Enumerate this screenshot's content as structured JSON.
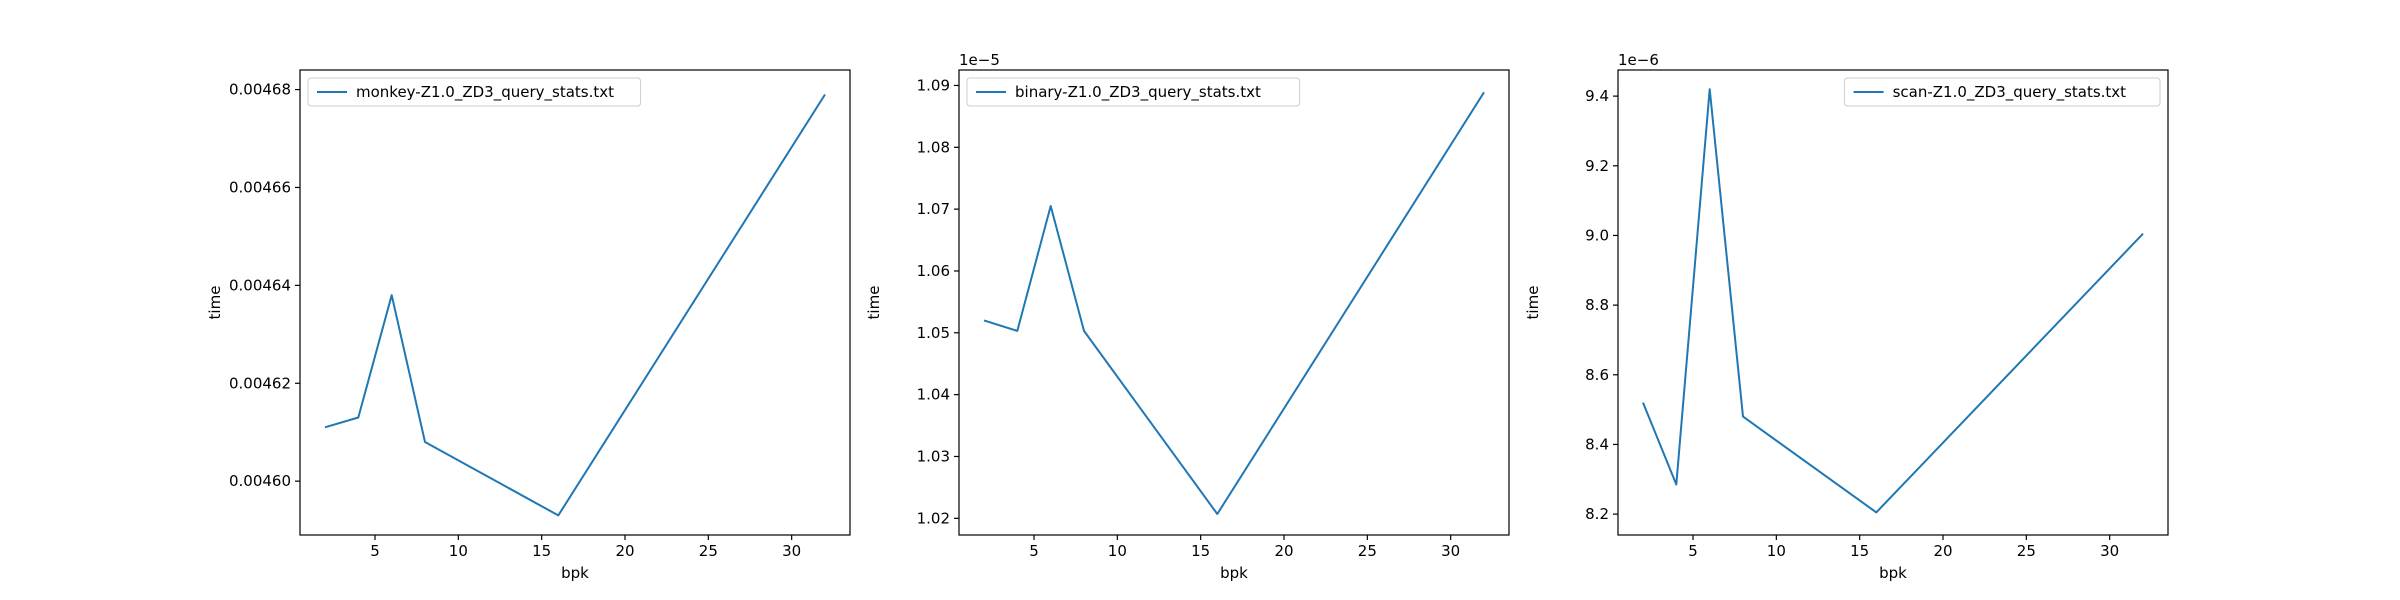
{
  "chart_data": [
    {
      "type": "line",
      "xlabel": "bpk",
      "ylabel": "time",
      "offset_label": "",
      "xlim": [
        0.5,
        33.5
      ],
      "ylim": [
        0.004589,
        0.004684
      ],
      "xticks": [
        5,
        10,
        15,
        20,
        25,
        30
      ],
      "xtick_labels": [
        "5",
        "10",
        "15",
        "20",
        "25",
        "30"
      ],
      "yticks": [
        0.0046,
        0.00462,
        0.00464,
        0.00466,
        0.00468
      ],
      "ytick_labels": [
        "0.00460",
        "0.00462",
        "0.00464",
        "0.00466",
        "0.00468"
      ],
      "legend_loc": "upper left",
      "grid": false,
      "series": [
        {
          "name": "monkey-Z1.0_ZD3_query_stats.txt",
          "color": "#1f77b4",
          "x": [
            2,
            4,
            6,
            8,
            16,
            32
          ],
          "y": [
            0.004611,
            0.004613,
            0.004638,
            0.004608,
            0.004593,
            0.004679
          ]
        }
      ]
    },
    {
      "type": "line",
      "xlabel": "bpk",
      "ylabel": "time",
      "offset_label": "1e−5",
      "xlim": [
        0.5,
        33.5
      ],
      "ylim": [
        1.0173,
        1.0925
      ],
      "xticks": [
        5,
        10,
        15,
        20,
        25,
        30
      ],
      "xtick_labels": [
        "5",
        "10",
        "15",
        "20",
        "25",
        "30"
      ],
      "yticks": [
        1.02,
        1.03,
        1.04,
        1.05,
        1.06,
        1.07,
        1.08,
        1.09
      ],
      "ytick_labels": [
        "1.02",
        "1.03",
        "1.04",
        "1.05",
        "1.06",
        "1.07",
        "1.08",
        "1.09"
      ],
      "legend_loc": "upper left",
      "grid": false,
      "series": [
        {
          "name": "binary-Z1.0_ZD3_query_stats.txt",
          "color": "#1f77b4",
          "x": [
            2,
            4,
            6,
            8,
            16,
            32
          ],
          "y": [
            1.052,
            1.0503,
            1.0705,
            1.0503,
            1.0207,
            1.0889
          ]
        }
      ]
    },
    {
      "type": "line",
      "xlabel": "bpk",
      "ylabel": "time",
      "offset_label": "1e−6",
      "xlim": [
        0.5,
        33.5
      ],
      "ylim": [
        8.14,
        9.475
      ],
      "xticks": [
        5,
        10,
        15,
        20,
        25,
        30
      ],
      "xtick_labels": [
        "5",
        "10",
        "15",
        "20",
        "25",
        "30"
      ],
      "yticks": [
        8.2,
        8.4,
        8.6,
        8.8,
        9.0,
        9.2,
        9.4
      ],
      "ytick_labels": [
        "8.2",
        "8.4",
        "8.6",
        "8.8",
        "9.0",
        "9.2",
        "9.4"
      ],
      "legend_loc": "upper right",
      "grid": false,
      "series": [
        {
          "name": "scan-Z1.0_ZD3_query_stats.txt",
          "color": "#1f77b4",
          "x": [
            2,
            4,
            6,
            8,
            16,
            32
          ],
          "y": [
            8.52,
            8.285,
            9.42,
            8.48,
            8.205,
            9.005
          ]
        }
      ]
    }
  ]
}
